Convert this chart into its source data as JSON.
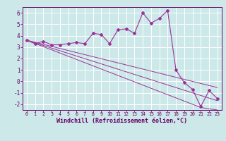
{
  "title": "",
  "xlabel": "Windchill (Refroidissement éolien,°C)",
  "ylabel": "",
  "background_color": "#cce8e8",
  "grid_color": "#ffffff",
  "line_color": "#993399",
  "xlim": [
    -0.5,
    23.5
  ],
  "ylim": [
    -2.5,
    6.5
  ],
  "yticks": [
    -2,
    -1,
    0,
    1,
    2,
    3,
    4,
    5,
    6
  ],
  "xticks": [
    0,
    1,
    2,
    3,
    4,
    5,
    6,
    7,
    8,
    9,
    10,
    11,
    12,
    13,
    14,
    15,
    16,
    17,
    18,
    19,
    20,
    21,
    22,
    23
  ],
  "curve1": [
    3.6,
    3.3,
    3.5,
    3.2,
    3.2,
    3.3,
    3.4,
    3.3,
    4.2,
    4.1,
    3.3,
    4.5,
    4.6,
    4.2,
    6.0,
    5.1,
    5.5,
    6.2,
    1.0,
    -0.1,
    -0.7,
    -2.2,
    -0.8,
    -1.5
  ],
  "line2": [
    3.6,
    3.42,
    3.24,
    3.06,
    2.88,
    2.7,
    2.52,
    2.34,
    2.16,
    1.98,
    1.8,
    1.62,
    1.44,
    1.26,
    1.08,
    0.9,
    0.72,
    0.54,
    0.36,
    0.18,
    0.0,
    -0.18,
    -0.36,
    -0.54
  ],
  "line3": [
    3.6,
    3.37,
    3.14,
    2.91,
    2.68,
    2.45,
    2.22,
    1.99,
    1.76,
    1.53,
    1.3,
    1.07,
    0.84,
    0.61,
    0.38,
    0.15,
    -0.08,
    -0.31,
    -0.54,
    -0.77,
    -1.0,
    -1.23,
    -1.46,
    -1.69
  ],
  "line4": [
    3.6,
    3.32,
    3.04,
    2.76,
    2.48,
    2.2,
    1.92,
    1.64,
    1.36,
    1.08,
    0.8,
    0.52,
    0.24,
    -0.04,
    -0.32,
    -0.6,
    -0.88,
    -1.16,
    -1.44,
    -1.72,
    -2.0,
    -2.28,
    -2.4,
    -2.5
  ],
  "tick_color": "#660066",
  "xlabel_fontsize": 6.0,
  "xlabel_fontfamily": "monospace",
  "ytick_fontsize": 5.5,
  "xtick_fontsize": 4.8
}
